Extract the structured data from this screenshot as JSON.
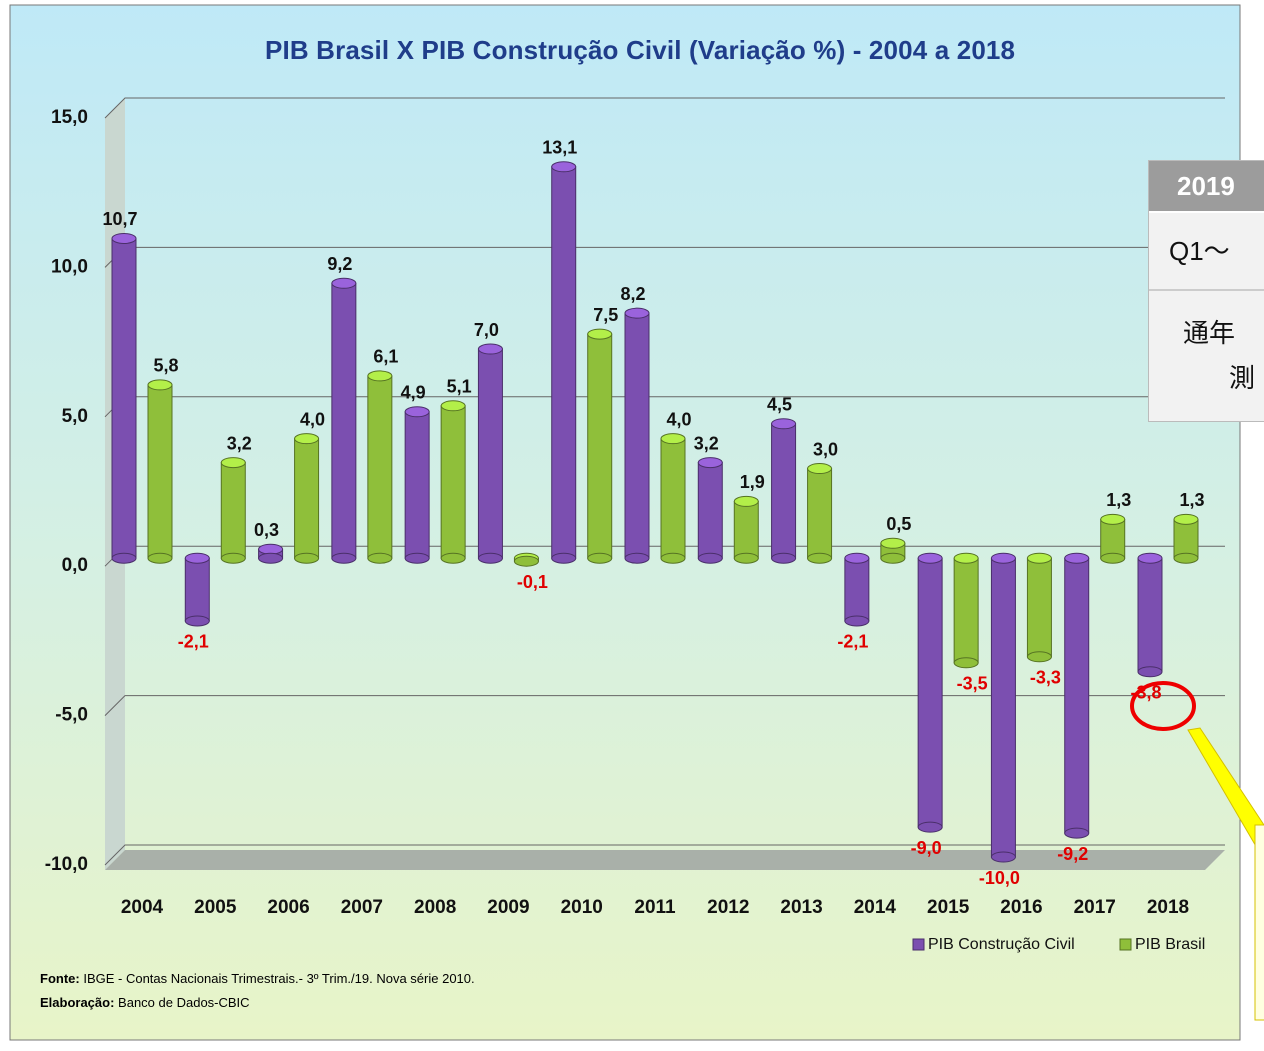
{
  "chart_data": {
    "type": "bar",
    "title": "PIB Brasil X PIB Construção Civil (Variação %) - 2004 a 2018",
    "categories": [
      "2004",
      "2005",
      "2006",
      "2007",
      "2008",
      "2009",
      "2010",
      "2011",
      "2012",
      "2013",
      "2014",
      "2015",
      "2016",
      "2017",
      "2018"
    ],
    "series": [
      {
        "name": "PIB Construção Civil",
        "color": "#7b4fb0",
        "values": [
          10.7,
          -2.1,
          0.3,
          9.2,
          4.9,
          7.0,
          13.1,
          8.2,
          3.2,
          4.5,
          -2.1,
          -9.0,
          -10.0,
          -9.2,
          -3.8
        ],
        "value_labels": [
          "10,7",
          "-2,1",
          "0,3",
          "9,2",
          "4,9",
          "7,0",
          "13,1",
          "8,2",
          "3,2",
          "4,5",
          "-2,1",
          "-9,0",
          "-10,0",
          "-9,2",
          "-3,8"
        ]
      },
      {
        "name": "PIB Brasil",
        "color": "#8fbf3a",
        "values": [
          5.8,
          3.2,
          4.0,
          6.1,
          5.1,
          -0.1,
          7.5,
          4.0,
          1.9,
          3.0,
          0.5,
          -3.5,
          -3.3,
          1.3,
          1.3
        ],
        "value_labels": [
          "5,8",
          "3,2",
          "4,0",
          "6,1",
          "5,1",
          "-0,1",
          "7,5",
          "4,0",
          "1,9",
          "3,0",
          "0,5",
          "-3,5",
          "-3,3",
          "1,3",
          "1,3"
        ]
      }
    ],
    "ylim": [
      -10,
      15
    ],
    "yticks": [
      {
        "value": -10,
        "label": "-10,0"
      },
      {
        "value": -5,
        "label": "-5,0"
      },
      {
        "value": 0,
        "label": "0,0"
      },
      {
        "value": 5,
        "label": "5,0"
      },
      {
        "value": 10,
        "label": "10,0"
      },
      {
        "value": 15,
        "label": "15,0"
      }
    ],
    "grid": true,
    "legend": "bottom-right",
    "source_label": "Fonte:",
    "source": "IBGE - Contas Nacionais Trimestrais.- 3º Trim./19. Nova série 2010.",
    "credit_label": "Elaboração:",
    "credit": "Banco de Dados-CBIC"
  },
  "overlay_table": {
    "header": "2019",
    "row1": "Q1～",
    "row2_line1": "通年",
    "row2_line2": "測"
  }
}
